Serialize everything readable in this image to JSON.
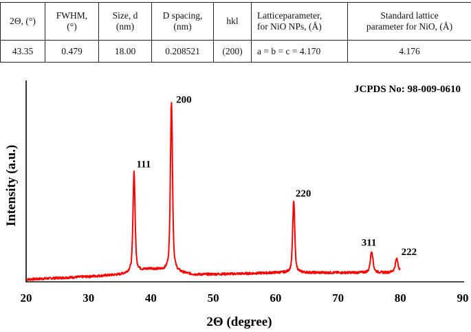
{
  "table": {
    "headers": [
      "2Θ, (°)",
      "FWHM, (°)",
      "Size, d (nm)",
      "D spacing, (nm)",
      "hkl",
      "Latticeparameter, for NiO NPs, (Å)",
      "Standard lattice parameter for NiO, (Å)"
    ],
    "header_lines": [
      [
        "2Θ, (°)"
      ],
      [
        "FWHM,",
        "(°)"
      ],
      [
        "Size, d",
        "(nm)"
      ],
      [
        "D spacing,",
        "(nm)"
      ],
      [
        "hkl"
      ],
      [
        "Latticeparameter,",
        "for NiO NPs, (Å)"
      ],
      [
        "Standard lattice",
        "parameter for NiO, (Å)"
      ]
    ],
    "rows": [
      [
        "43.35",
        "0.479",
        "18.00",
        "0.208521",
        "(200)",
        "a = b = c = 4.170",
        "4.176"
      ]
    ]
  },
  "chart_data": {
    "type": "line",
    "title": "",
    "annotation": "JCPDS No: 98-009-0610",
    "xlabel": "2Θ (degree)",
    "ylabel": "Intensity (a.u.)",
    "xlim": [
      20,
      90
    ],
    "xticks": [
      20,
      30,
      40,
      50,
      60,
      70,
      80,
      90
    ],
    "ylim": [
      0,
      100
    ],
    "yticks_shown": false,
    "grid": false,
    "legend": null,
    "series_color": "#ff0000",
    "x_data_range": [
      20,
      80
    ],
    "baseline": [
      {
        "x": 20,
        "y": 0.5
      },
      {
        "x": 30,
        "y": 2
      },
      {
        "x": 35,
        "y": 3
      },
      {
        "x": 40,
        "y": 6
      },
      {
        "x": 47,
        "y": 3
      },
      {
        "x": 55,
        "y": 3.5
      },
      {
        "x": 60,
        "y": 4
      },
      {
        "x": 66,
        "y": 4
      },
      {
        "x": 72,
        "y": 4
      },
      {
        "x": 78,
        "y": 4
      },
      {
        "x": 80,
        "y": 5
      }
    ],
    "peaks": [
      {
        "hkl": "111",
        "x": 37.3,
        "intensity": 56
      },
      {
        "hkl": "200",
        "x": 43.3,
        "intensity": 92
      },
      {
        "hkl": "220",
        "x": 62.9,
        "intensity": 41
      },
      {
        "hkl": "311",
        "x": 75.4,
        "intensity": 15
      },
      {
        "hkl": "222",
        "x": 79.4,
        "intensity": 11
      }
    ]
  }
}
